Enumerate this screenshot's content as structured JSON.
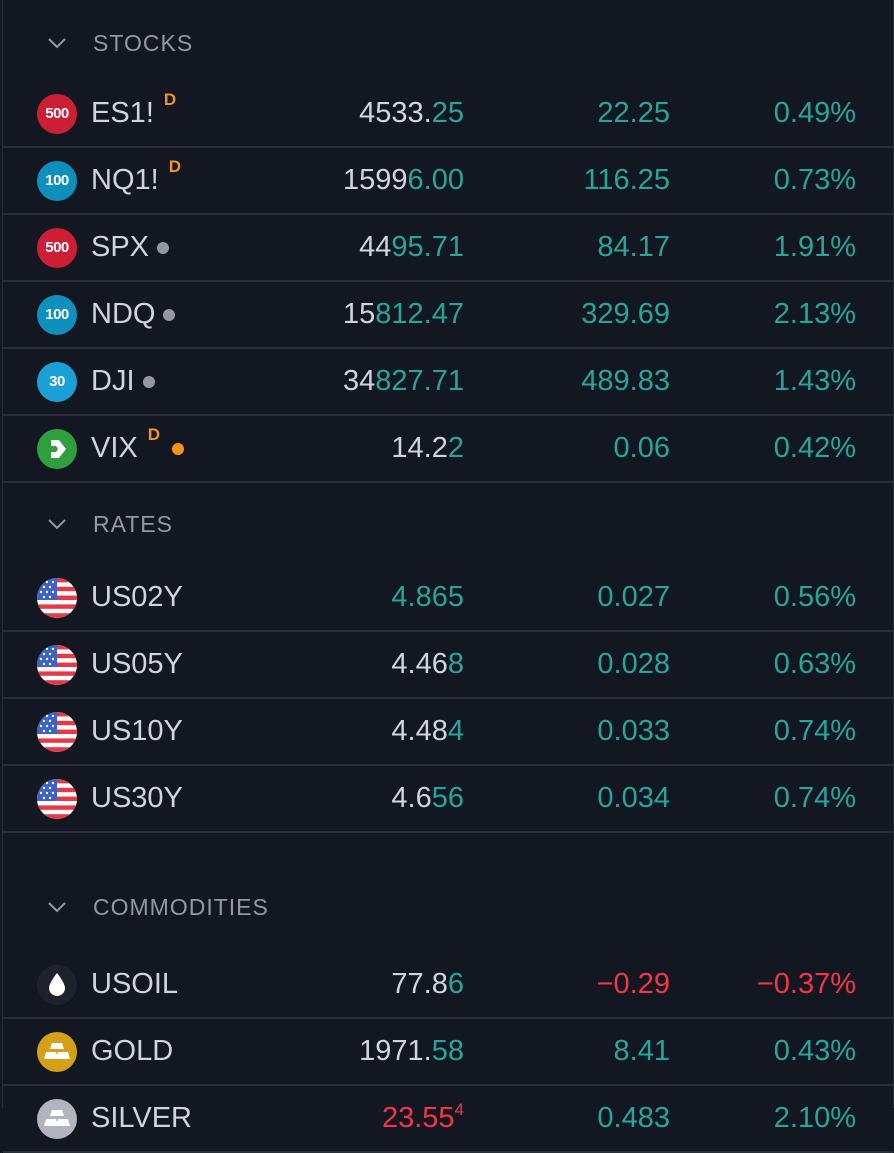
{
  "colors": {
    "up": "#26a69a",
    "down": "#f23645",
    "text": "#d1d4dc",
    "muted": "#9598a1",
    "bg": "#131722",
    "delayed": "#f7931a"
  },
  "sections": [
    {
      "title": "STOCKS",
      "rows": [
        {
          "logo": "500",
          "logo_color": "#cc1f36",
          "symbol": "ES1!",
          "badge": "D",
          "dot": "",
          "price_plain": "4533.",
          "price_hl": "25",
          "price_hl_color": "green",
          "price_sup": "",
          "change": "22.25",
          "percent": "0.49%",
          "dir": "up"
        },
        {
          "logo": "100",
          "logo_color": "#0f8fbc",
          "symbol": "NQ1!",
          "badge": "D",
          "dot": "",
          "price_plain": "1599",
          "price_hl": "6.00",
          "price_hl_color": "green",
          "price_sup": "",
          "change": "116.25",
          "percent": "0.73%",
          "dir": "up"
        },
        {
          "logo": "500",
          "logo_color": "#cc1f36",
          "symbol": "SPX",
          "badge": "",
          "dot": "grey",
          "price_plain": "44",
          "price_hl": "95.71",
          "price_hl_color": "green",
          "price_sup": "",
          "change": "84.17",
          "percent": "1.91%",
          "dir": "up"
        },
        {
          "logo": "100",
          "logo_color": "#0f8fbc",
          "symbol": "NDQ",
          "badge": "",
          "dot": "grey",
          "price_plain": "15",
          "price_hl": "812.47",
          "price_hl_color": "green",
          "price_sup": "",
          "change": "329.69",
          "percent": "2.13%",
          "dir": "up"
        },
        {
          "logo": "30",
          "logo_color": "#1a9fd6",
          "symbol": "DJI",
          "badge": "",
          "dot": "grey",
          "price_plain": "34",
          "price_hl": "827.71",
          "price_hl_color": "green",
          "price_sup": "",
          "change": "489.83",
          "percent": "1.43%",
          "dir": "up"
        },
        {
          "logo": "vix",
          "logo_color": "#2e9e3f",
          "symbol": "VIX",
          "badge": "D",
          "dot": "orange",
          "price_plain": "14.2",
          "price_hl": "2",
          "price_hl_color": "green",
          "price_sup": "",
          "change": "0.06",
          "percent": "0.42%",
          "dir": "up"
        }
      ]
    },
    {
      "title": "RATES",
      "rows": [
        {
          "logo": "us-flag",
          "logo_color": "",
          "symbol": "US02Y",
          "badge": "",
          "dot": "",
          "price_plain": "",
          "price_hl": "4.865",
          "price_hl_color": "green",
          "price_sup": "",
          "change": "0.027",
          "percent": "0.56%",
          "dir": "up"
        },
        {
          "logo": "us-flag",
          "logo_color": "",
          "symbol": "US05Y",
          "badge": "",
          "dot": "",
          "price_plain": "4.46",
          "price_hl": "8",
          "price_hl_color": "green",
          "price_sup": "",
          "change": "0.028",
          "percent": "0.63%",
          "dir": "up"
        },
        {
          "logo": "us-flag",
          "logo_color": "",
          "symbol": "US10Y",
          "badge": "",
          "dot": "",
          "price_plain": "4.48",
          "price_hl": "4",
          "price_hl_color": "green",
          "price_sup": "",
          "change": "0.033",
          "percent": "0.74%",
          "dir": "up"
        },
        {
          "logo": "us-flag",
          "logo_color": "",
          "symbol": "US30Y",
          "badge": "",
          "dot": "",
          "price_plain": "4.6",
          "price_hl": "56",
          "price_hl_color": "green",
          "price_sup": "",
          "change": "0.034",
          "percent": "0.74%",
          "dir": "up"
        }
      ]
    },
    {
      "title": "COMMODITIES",
      "rows": [
        {
          "logo": "oil",
          "logo_color": "#1e222d",
          "symbol": "USOIL",
          "badge": "",
          "dot": "",
          "price_plain": "77.8",
          "price_hl": "6",
          "price_hl_color": "green",
          "price_sup": "",
          "change": "−0.29",
          "percent": "−0.37%",
          "dir": "down"
        },
        {
          "logo": "gold",
          "logo_color": "#d4a017",
          "symbol": "GOLD",
          "badge": "",
          "dot": "",
          "price_plain": "1971.",
          "price_hl": "58",
          "price_hl_color": "green",
          "price_sup": "",
          "change": "8.41",
          "percent": "0.43%",
          "dir": "up"
        },
        {
          "logo": "silver",
          "logo_color": "#b2b5be",
          "symbol": "SILVER",
          "badge": "",
          "dot": "",
          "price_plain": "",
          "price_hl": "23.55",
          "price_hl_color": "red",
          "price_sup": "4",
          "change": "0.483",
          "percent": "2.10%",
          "dir": "up"
        }
      ]
    }
  ]
}
